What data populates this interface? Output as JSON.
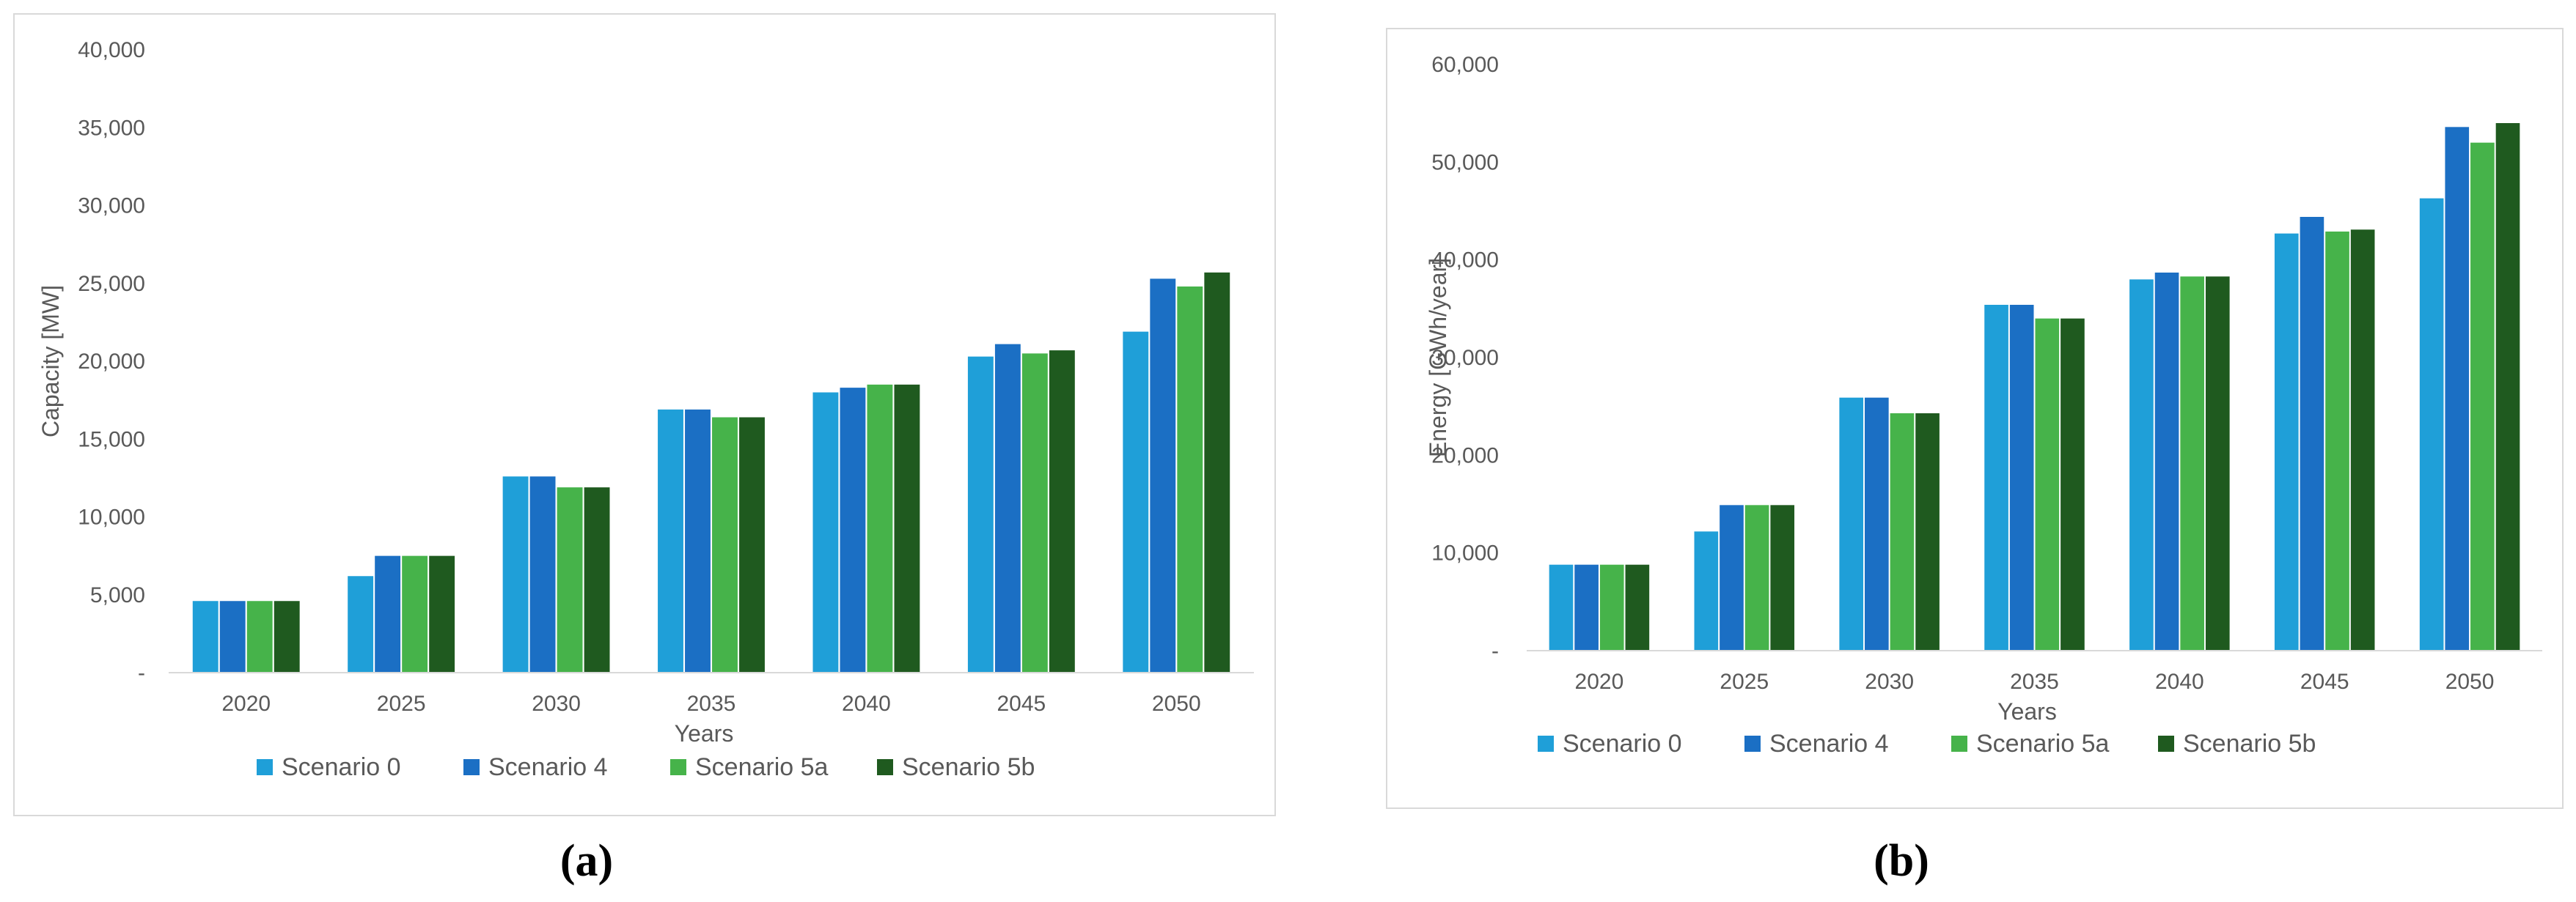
{
  "chart_data": [
    {
      "type": "bar",
      "panel_label": "(a)",
      "title": "",
      "xlabel": "Years",
      "ylabel": "Capacity [MW]",
      "categories": [
        "2020",
        "2025",
        "2030",
        "2035",
        "2040",
        "2045",
        "2050"
      ],
      "ylim": [
        0,
        40000
      ],
      "yticks": [
        0,
        5000,
        10000,
        15000,
        20000,
        25000,
        30000,
        35000,
        40000
      ],
      "ytick_labels": [
        "-",
        "5,000",
        "10,000",
        "15,000",
        "20,000",
        "25,000",
        "30,000",
        "35,000",
        "40,000"
      ],
      "grid": false,
      "legend_position": "bottom",
      "series": [
        {
          "name": "Scenario 0",
          "color": "#1f9fd8",
          "values": [
            4600,
            6200,
            12600,
            16900,
            18000,
            20300,
            21900
          ]
        },
        {
          "name": "Scenario 4",
          "color": "#1b6fc4",
          "values": [
            4600,
            7500,
            12600,
            16900,
            18300,
            21100,
            25300
          ]
        },
        {
          "name": "Scenario 5a",
          "color": "#46b34a",
          "values": [
            4600,
            7500,
            11900,
            16400,
            18500,
            20500,
            24800
          ]
        },
        {
          "name": "Scenario 5b",
          "color": "#1f5a1f",
          "values": [
            4600,
            7500,
            11900,
            16400,
            18500,
            20700,
            25700
          ]
        }
      ]
    },
    {
      "type": "bar",
      "panel_label": "(b)",
      "title": "",
      "xlabel": "Years",
      "ylabel": "Energy [GWh/year]",
      "categories": [
        "2020",
        "2025",
        "2030",
        "2035",
        "2040",
        "2045",
        "2050"
      ],
      "ylim": [
        0,
        60000
      ],
      "yticks": [
        0,
        10000,
        20000,
        30000,
        40000,
        50000,
        60000
      ],
      "ytick_labels": [
        "-",
        "10,000",
        "20,000",
        "30,000",
        "40,000",
        "50,000",
        "60,000"
      ],
      "grid": false,
      "legend_position": "bottom",
      "series": [
        {
          "name": "Scenario 0",
          "color": "#1f9fd8",
          "values": [
            8800,
            12200,
            25900,
            35400,
            38000,
            42700,
            46300
          ]
        },
        {
          "name": "Scenario 4",
          "color": "#1b6fc4",
          "values": [
            8800,
            14900,
            25900,
            35400,
            38700,
            44400,
            53600
          ]
        },
        {
          "name": "Scenario 5a",
          "color": "#46b34a",
          "values": [
            8800,
            14900,
            24300,
            34000,
            38300,
            42900,
            52000
          ]
        },
        {
          "name": "Scenario 5b",
          "color": "#1f5a1f",
          "values": [
            8800,
            14900,
            24300,
            34000,
            38300,
            43100,
            54000
          ]
        }
      ]
    }
  ]
}
